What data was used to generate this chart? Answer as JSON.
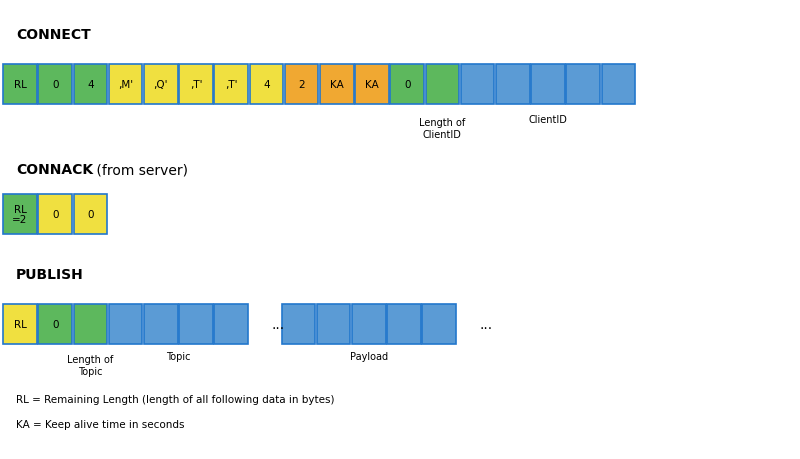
{
  "bg_color": "#ffffff",
  "box_edge_color": "#2277cc",
  "fig_width": 8.0,
  "fig_height": 4.6,
  "connect_title": "CONNECT",
  "connack_title": "CONNACK",
  "connack_suffix": " (from server)",
  "publish_title": "PUBLISH",
  "connect_boxes": [
    {
      "label": "RL",
      "color": "#5db85d"
    },
    {
      "label": "0",
      "color": "#5db85d"
    },
    {
      "label": "4",
      "color": "#5db85d"
    },
    {
      "label": ",M'",
      "color": "#f0e040"
    },
    {
      "label": ",Q'",
      "color": "#f0e040"
    },
    {
      "label": ",T'",
      "color": "#f0e040"
    },
    {
      "label": ",T'",
      "color": "#f0e040"
    },
    {
      "label": "4",
      "color": "#f0e040"
    },
    {
      "label": "2",
      "color": "#f0a832"
    },
    {
      "label": "KA",
      "color": "#f0a832"
    },
    {
      "label": "KA",
      "color": "#f0a832"
    },
    {
      "label": "0",
      "color": "#5db85d"
    },
    {
      "label": "",
      "color": "#5db85d"
    },
    {
      "label": "",
      "color": "#5b9bd5"
    },
    {
      "label": "",
      "color": "#5b9bd5"
    },
    {
      "label": "",
      "color": "#5b9bd5"
    },
    {
      "label": "",
      "color": "#5b9bd5"
    },
    {
      "label": "",
      "color": "#5b9bd5"
    }
  ],
  "connack_boxes": [
    {
      "label": "RL\n=2",
      "color": "#5db85d"
    },
    {
      "label": "0",
      "color": "#f0e040"
    },
    {
      "label": "0",
      "color": "#f0e040"
    }
  ],
  "publish_boxes_left": [
    {
      "label": "RL",
      "color": "#f0e040"
    },
    {
      "label": "0",
      "color": "#5db85d"
    },
    {
      "label": "",
      "color": "#5db85d"
    },
    {
      "label": "",
      "color": "#5b9bd5"
    },
    {
      "label": "",
      "color": "#5b9bd5"
    },
    {
      "label": "",
      "color": "#5b9bd5"
    },
    {
      "label": "",
      "color": "#5b9bd5"
    }
  ],
  "publish_boxes_right": [
    {
      "label": "",
      "color": "#5b9bd5"
    },
    {
      "label": "",
      "color": "#5b9bd5"
    },
    {
      "label": "",
      "color": "#5b9bd5"
    },
    {
      "label": "",
      "color": "#5b9bd5"
    },
    {
      "label": "",
      "color": "#5b9bd5"
    }
  ],
  "footnotes": [
    "RL = Remaining Length (length of all following data in bytes)",
    "KA = Keep alive time in seconds"
  ],
  "title_fontsize": 10,
  "label_fontsize": 7.5,
  "annot_fontsize": 7,
  "footnote_fontsize": 7.5
}
